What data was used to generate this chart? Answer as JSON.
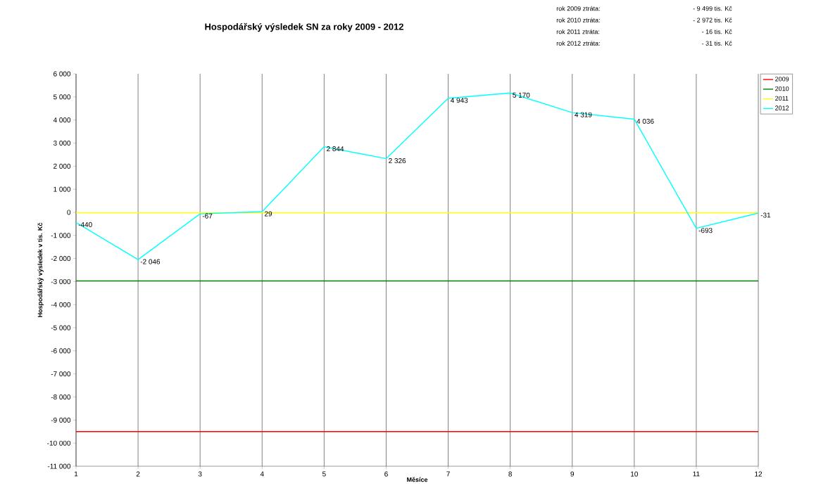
{
  "chart_data": {
    "type": "line",
    "title": "Hospodářský výsledek SN za roky 2009 - 2012",
    "xlabel": "Měsíce",
    "ylabel": "Hospodářský výsledek v tis. Kč",
    "annotations": [
      "rok 2009 ztráta:",
      "- 9 499 tis. Kč",
      "rok 2010 ztráta:",
      "- 2 972 tis. Kč",
      "rok 2011 ztráta:",
      "- 16 tis. Kč",
      "rok 2012 ztráta:",
      "- 31 tis. Kč"
    ],
    "x": [
      1,
      2,
      3,
      4,
      5,
      6,
      7,
      8,
      9,
      10,
      11,
      12
    ],
    "series": [
      {
        "name": "2009",
        "color": "#ff0000",
        "values": [
          -9499,
          -9499,
          -9499,
          -9499,
          -9499,
          -9499,
          -9499,
          -9499,
          -9499,
          -9499,
          -9499,
          -9499
        ]
      },
      {
        "name": "2010",
        "color": "#008000",
        "values": [
          -2972,
          -2972,
          -2972,
          -2972,
          -2972,
          -2972,
          -2972,
          -2972,
          -2972,
          -2972,
          -2972,
          -2972
        ]
      },
      {
        "name": "2011",
        "color": "#ffff00",
        "values": [
          -16,
          -16,
          -16,
          -16,
          -16,
          -16,
          -16,
          -16,
          -16,
          -16,
          -16,
          -16
        ]
      },
      {
        "name": "2012",
        "color": "#00ffff",
        "values": [
          -440,
          -2046,
          -67,
          29,
          2844,
          2326,
          4943,
          5170,
          4319,
          4036,
          -693,
          -31
        ],
        "value_labels": [
          "-440",
          "-2 046",
          "-67",
          "29",
          "2 844",
          "2 326",
          "4 943",
          "5 170",
          "4 319",
          "4 036",
          "-693",
          "-31"
        ]
      }
    ],
    "xlim": [
      1,
      12
    ],
    "xticks": [
      1,
      2,
      3,
      4,
      5,
      6,
      7,
      8,
      9,
      10,
      11,
      12
    ],
    "ylim": [
      -11000,
      6000
    ],
    "yticks": [
      {
        "value": -11000,
        "label": "-11 000"
      },
      {
        "value": -10000,
        "label": "-10 000"
      },
      {
        "value": -9000,
        "label": "-9 000"
      },
      {
        "value": -8000,
        "label": "-8 000"
      },
      {
        "value": -7000,
        "label": "-7 000"
      },
      {
        "value": -6000,
        "label": "-6 000"
      },
      {
        "value": -5000,
        "label": "-5 000"
      },
      {
        "value": -4000,
        "label": "-4 000"
      },
      {
        "value": -3000,
        "label": "-3 000"
      },
      {
        "value": -2000,
        "label": "-2 000"
      },
      {
        "value": -1000,
        "label": "-1 000"
      },
      {
        "value": 0,
        "label": "0"
      },
      {
        "value": 1000,
        "label": "1 000"
      },
      {
        "value": 2000,
        "label": "2 000"
      },
      {
        "value": 3000,
        "label": "3 000"
      },
      {
        "value": 4000,
        "label": "4 000"
      },
      {
        "value": 5000,
        "label": "5 000"
      },
      {
        "value": 6000,
        "label": "6 000"
      }
    ],
    "grid": "x",
    "legend": "right",
    "marker": "none",
    "line_style": "solid"
  }
}
